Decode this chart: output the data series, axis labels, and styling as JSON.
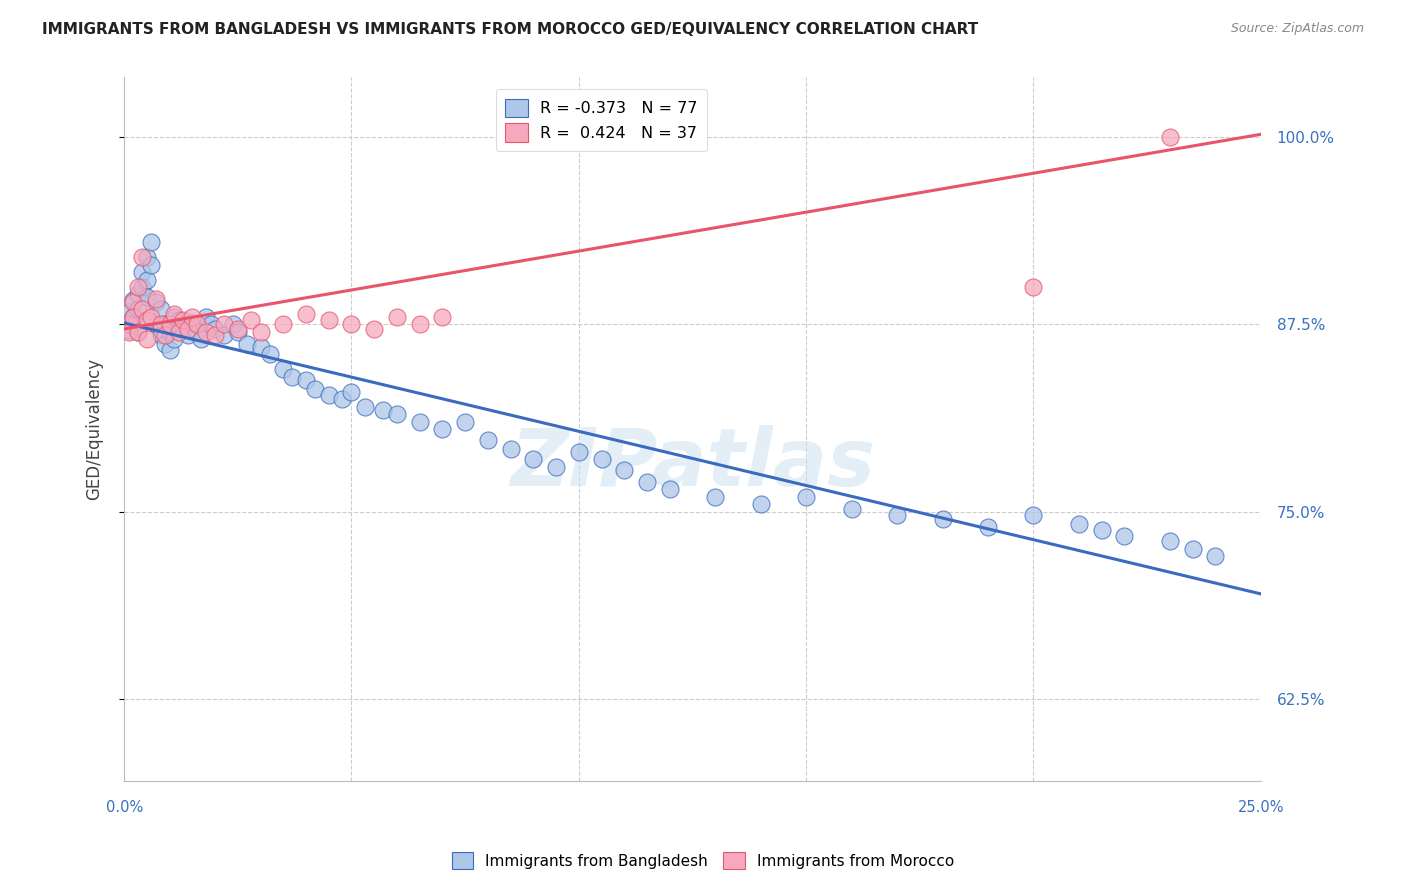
{
  "title": "IMMIGRANTS FROM BANGLADESH VS IMMIGRANTS FROM MOROCCO GED/EQUIVALENCY CORRELATION CHART",
  "source": "Source: ZipAtlas.com",
  "ylabel": "GED/Equivalency",
  "ytick_labels": [
    "62.5%",
    "75.0%",
    "87.5%",
    "100.0%"
  ],
  "ytick_values": [
    0.625,
    0.75,
    0.875,
    1.0
  ],
  "xlim": [
    0.0,
    0.25
  ],
  "ylim": [
    0.57,
    1.04
  ],
  "legend1_label": "R = -0.373   N = 77",
  "legend2_label": "R =  0.424   N = 37",
  "color_blue": "#aec6e8",
  "color_pink": "#f5a8be",
  "line_blue": "#3b6bbf",
  "line_pink": "#e8546a",
  "watermark": "ZIPatlas",
  "bd_line_x0": 0.0,
  "bd_line_y0": 0.876,
  "bd_line_x1": 0.25,
  "bd_line_y1": 0.695,
  "mo_line_x0": 0.0,
  "mo_line_y0": 0.872,
  "mo_line_x1": 0.25,
  "mo_line_y1": 1.002,
  "bd_x": [
    0.001,
    0.001,
    0.001,
    0.002,
    0.002,
    0.002,
    0.003,
    0.003,
    0.003,
    0.004,
    0.004,
    0.005,
    0.005,
    0.005,
    0.006,
    0.006,
    0.007,
    0.007,
    0.008,
    0.008,
    0.009,
    0.009,
    0.01,
    0.01,
    0.011,
    0.011,
    0.012,
    0.013,
    0.014,
    0.015,
    0.016,
    0.017,
    0.018,
    0.019,
    0.02,
    0.022,
    0.024,
    0.025,
    0.027,
    0.03,
    0.032,
    0.035,
    0.037,
    0.04,
    0.042,
    0.045,
    0.048,
    0.05,
    0.053,
    0.057,
    0.06,
    0.065,
    0.07,
    0.075,
    0.08,
    0.085,
    0.09,
    0.095,
    0.1,
    0.105,
    0.11,
    0.115,
    0.12,
    0.13,
    0.14,
    0.15,
    0.16,
    0.17,
    0.18,
    0.19,
    0.2,
    0.21,
    0.215,
    0.22,
    0.23,
    0.235,
    0.24
  ],
  "bd_y": [
    0.877,
    0.883,
    0.871,
    0.891,
    0.88,
    0.875,
    0.895,
    0.885,
    0.87,
    0.91,
    0.9,
    0.92,
    0.905,
    0.893,
    0.93,
    0.915,
    0.89,
    0.875,
    0.885,
    0.868,
    0.875,
    0.862,
    0.87,
    0.858,
    0.88,
    0.865,
    0.878,
    0.872,
    0.868,
    0.876,
    0.87,
    0.865,
    0.88,
    0.875,
    0.872,
    0.868,
    0.875,
    0.87,
    0.862,
    0.86,
    0.855,
    0.845,
    0.84,
    0.838,
    0.832,
    0.828,
    0.825,
    0.83,
    0.82,
    0.818,
    0.815,
    0.81,
    0.805,
    0.81,
    0.798,
    0.792,
    0.785,
    0.78,
    0.79,
    0.785,
    0.778,
    0.77,
    0.765,
    0.76,
    0.755,
    0.76,
    0.752,
    0.748,
    0.745,
    0.74,
    0.748,
    0.742,
    0.738,
    0.734,
    0.73,
    0.725,
    0.72
  ],
  "mo_x": [
    0.001,
    0.001,
    0.002,
    0.002,
    0.003,
    0.003,
    0.004,
    0.004,
    0.005,
    0.005,
    0.006,
    0.007,
    0.008,
    0.009,
    0.01,
    0.011,
    0.012,
    0.013,
    0.014,
    0.015,
    0.016,
    0.018,
    0.02,
    0.022,
    0.025,
    0.028,
    0.03,
    0.035,
    0.04,
    0.045,
    0.05,
    0.055,
    0.06,
    0.065,
    0.07,
    0.2,
    0.23
  ],
  "mo_y": [
    0.875,
    0.87,
    0.89,
    0.88,
    0.9,
    0.87,
    0.92,
    0.885,
    0.878,
    0.865,
    0.88,
    0.892,
    0.875,
    0.868,
    0.875,
    0.882,
    0.87,
    0.878,
    0.872,
    0.88,
    0.875,
    0.87,
    0.868,
    0.875,
    0.872,
    0.878,
    0.87,
    0.875,
    0.882,
    0.878,
    0.875,
    0.872,
    0.88,
    0.875,
    0.88,
    0.9,
    1.0
  ]
}
